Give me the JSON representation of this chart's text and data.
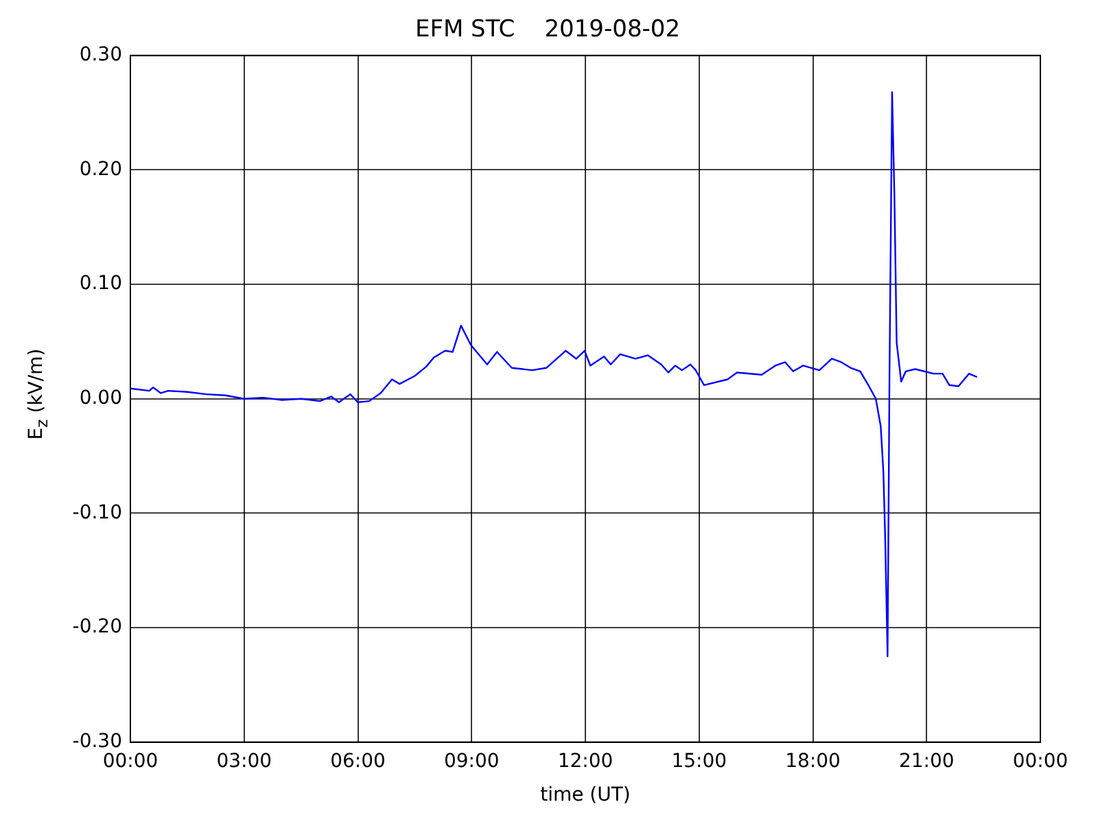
{
  "chart_data": {
    "type": "line",
    "title": "EFM STC    2019-08-02",
    "xlabel": "time (UT)",
    "ylabel": "E$_{z}$ (kV/m)",
    "xlim": [
      0,
      24
    ],
    "xticks": [
      {
        "value": 0,
        "label": "00:00"
      },
      {
        "value": 3,
        "label": "03:00"
      },
      {
        "value": 6,
        "label": "06:00"
      },
      {
        "value": 9,
        "label": "09:00"
      },
      {
        "value": 12,
        "label": "12:00"
      },
      {
        "value": 15,
        "label": "15:00"
      },
      {
        "value": 18,
        "label": "18:00"
      },
      {
        "value": 21,
        "label": "21:00"
      },
      {
        "value": 24,
        "label": "00:00"
      }
    ],
    "ylim": [
      -0.3,
      0.3
    ],
    "yticks": [
      {
        "value": -0.3,
        "label": "-0.30"
      },
      {
        "value": -0.2,
        "label": "-0.20"
      },
      {
        "value": -0.1,
        "label": "-0.10"
      },
      {
        "value": 0,
        "label": "0.00"
      },
      {
        "value": 0.1,
        "label": "0.10"
      },
      {
        "value": 0.2,
        "label": "0.20"
      },
      {
        "value": 0.3,
        "label": "0.30"
      }
    ],
    "grid": true,
    "legend": false,
    "marker": "none",
    "line_style": "solid",
    "series": [
      {
        "color": "#0000ff",
        "x": [
          0,
          0.5,
          0.6,
          0.8,
          1.0,
          1.5,
          2.0,
          2.5,
          3.0,
          3.5,
          4.0,
          4.5,
          5.0,
          5.3,
          5.5,
          5.8,
          6.0,
          6.3,
          6.6,
          6.9,
          7.1,
          7.5,
          7.8,
          8.0,
          8.3,
          8.5,
          8.72,
          8.98,
          9.41,
          9.67,
          10.06,
          10.6,
          10.97,
          11.48,
          11.76,
          11.98,
          12.13,
          12.49,
          12.67,
          12.92,
          13.32,
          13.65,
          14.0,
          14.19,
          14.37,
          14.55,
          14.77,
          14.91,
          15.13,
          15.75,
          16.0,
          16.65,
          17.01,
          17.27,
          17.48,
          17.74,
          18.17,
          18.5,
          18.75,
          19.0,
          19.25,
          19.48,
          19.66,
          19.79,
          19.86,
          19.91,
          19.97,
          20.02,
          20.09,
          20.15,
          20.21,
          20.33,
          20.45,
          20.7,
          21.18,
          21.42,
          21.6,
          21.84,
          22.12,
          22.33
        ],
        "values": [
          0.009,
          0.007,
          0.01,
          0.005,
          0.007,
          0.006,
          0.004,
          0.003,
          0.0,
          0.001,
          -0.001,
          0.0,
          -0.002,
          0.002,
          -0.003,
          0.004,
          -0.003,
          -0.002,
          0.005,
          0.017,
          0.013,
          0.02,
          0.028,
          0.036,
          0.042,
          0.041,
          0.064,
          0.047,
          0.03,
          0.041,
          0.027,
          0.025,
          0.027,
          0.042,
          0.035,
          0.042,
          0.029,
          0.037,
          0.03,
          0.039,
          0.035,
          0.038,
          0.03,
          0.023,
          0.029,
          0.025,
          0.03,
          0.025,
          0.012,
          0.017,
          0.023,
          0.021,
          0.029,
          0.032,
          0.024,
          0.029,
          0.025,
          0.035,
          0.032,
          0.027,
          0.024,
          0.011,
          0.0,
          -0.024,
          -0.064,
          -0.125,
          -0.225,
          0.017,
          0.268,
          0.179,
          0.049,
          0.015,
          0.024,
          0.026,
          0.022,
          0.022,
          0.012,
          0.011,
          0.022,
          0.019
        ]
      }
    ]
  }
}
